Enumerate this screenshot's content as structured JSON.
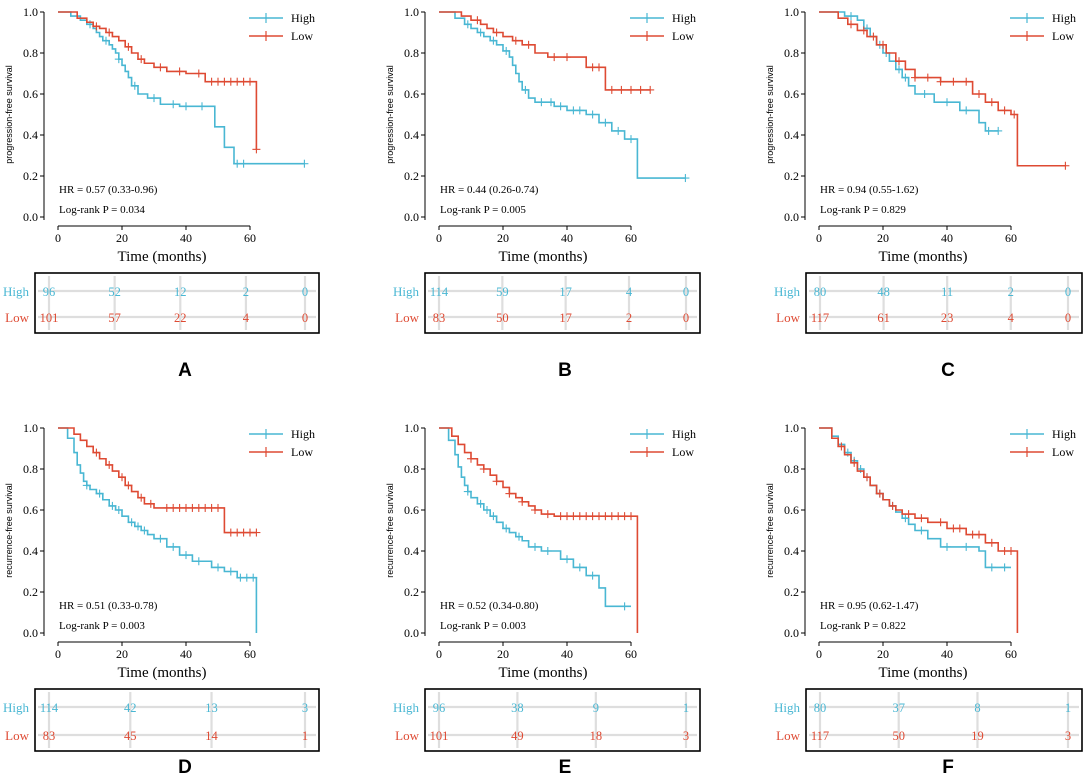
{
  "colors": {
    "high": "#49B7D3",
    "low": "#DE4A33"
  },
  "chart_data": [
    {
      "type": "line",
      "panel": "A",
      "ylabel": "progression-free  survival",
      "xlabel": "Time (months)",
      "xlim": [
        0,
        78
      ],
      "ylim": [
        0,
        1
      ],
      "xticks": [
        "0",
        "20",
        "40",
        "60"
      ],
      "yticks": [
        "0.0",
        "0.2",
        "0.4",
        "0.6",
        "0.8",
        "1.0"
      ],
      "legend": [
        "High",
        "Low"
      ],
      "legend_position": "top-right",
      "hr": "HR = 0.57 (0.33-0.96)",
      "pvalue": "Log-rank P = 0.034",
      "series": [
        {
          "name": "High",
          "x": [
            0,
            4,
            7,
            9,
            11,
            12,
            13,
            14,
            16,
            17,
            18,
            19,
            20,
            21,
            22,
            23,
            25,
            28,
            32,
            38,
            49,
            52,
            55,
            77
          ],
          "y": [
            1.0,
            0.98,
            0.96,
            0.94,
            0.92,
            0.9,
            0.88,
            0.86,
            0.84,
            0.82,
            0.8,
            0.77,
            0.74,
            0.71,
            0.68,
            0.64,
            0.6,
            0.58,
            0.55,
            0.54,
            0.44,
            0.34,
            0.26,
            0.26
          ],
          "censored_x": [
            10,
            15,
            19,
            24,
            30,
            36,
            40,
            45,
            56,
            58,
            77
          ]
        },
        {
          "name": "Low",
          "x": [
            0,
            6,
            9,
            11,
            13,
            15,
            17,
            19,
            21,
            23,
            25,
            27,
            30,
            34,
            40,
            46,
            62,
            62
          ],
          "y": [
            1.0,
            0.97,
            0.95,
            0.93,
            0.92,
            0.9,
            0.88,
            0.86,
            0.83,
            0.8,
            0.77,
            0.75,
            0.73,
            0.71,
            0.7,
            0.66,
            0.66,
            0.33
          ],
          "censored_x": [
            12,
            16,
            22,
            26,
            32,
            38,
            44,
            48,
            50,
            52,
            54,
            56,
            58,
            60,
            62
          ]
        }
      ],
      "risk_table": {
        "times": [
          0,
          20,
          40,
          60,
          78
        ],
        "High": [
          "96",
          "52",
          "12",
          "2",
          "0"
        ],
        "Low": [
          "101",
          "57",
          "22",
          "4",
          "0"
        ]
      }
    },
    {
      "type": "line",
      "panel": "B",
      "ylabel": "progression-free  survival",
      "xlabel": "Time (months)",
      "xlim": [
        0,
        78
      ],
      "ylim": [
        0,
        1
      ],
      "xticks": [
        "0",
        "20",
        "40",
        "60"
      ],
      "yticks": [
        "0.0",
        "0.2",
        "0.4",
        "0.6",
        "0.8",
        "1.0"
      ],
      "legend": [
        "High",
        "Low"
      ],
      "legend_position": "top-right",
      "hr": "HR = 0.44 (0.26-0.74)",
      "pvalue": "Log-rank P = 0.005",
      "series": [
        {
          "name": "High",
          "x": [
            0,
            5,
            8,
            10,
            12,
            14,
            16,
            18,
            20,
            22,
            23,
            24,
            25,
            26,
            28,
            30,
            36,
            40,
            46,
            50,
            54,
            58,
            62,
            77
          ],
          "y": [
            1.0,
            0.97,
            0.94,
            0.92,
            0.9,
            0.88,
            0.86,
            0.84,
            0.81,
            0.78,
            0.74,
            0.7,
            0.66,
            0.62,
            0.58,
            0.56,
            0.54,
            0.52,
            0.5,
            0.46,
            0.42,
            0.38,
            0.19,
            0.19
          ],
          "censored_x": [
            9,
            13,
            17,
            21,
            27,
            32,
            35,
            38,
            42,
            44,
            48,
            52,
            56,
            60,
            77
          ]
        },
        {
          "name": "Low",
          "x": [
            0,
            7,
            10,
            13,
            15,
            17,
            20,
            23,
            26,
            30,
            34,
            42,
            46,
            52,
            56,
            66
          ],
          "y": [
            1.0,
            0.98,
            0.96,
            0.94,
            0.92,
            0.9,
            0.88,
            0.86,
            0.84,
            0.8,
            0.78,
            0.78,
            0.73,
            0.62,
            0.62,
            0.62
          ],
          "censored_x": [
            12,
            18,
            24,
            28,
            36,
            40,
            48,
            50,
            54,
            57,
            60,
            63,
            66
          ]
        }
      ],
      "risk_table": {
        "times": [
          0,
          20,
          40,
          60,
          78
        ],
        "High": [
          "114",
          "59",
          "17",
          "4",
          "0"
        ],
        "Low": [
          "83",
          "50",
          "17",
          "2",
          "0"
        ]
      }
    },
    {
      "type": "line",
      "panel": "C",
      "ylabel": "progression-free  survival",
      "xlabel": "Time (months)",
      "xlim": [
        0,
        78
      ],
      "ylim": [
        0,
        1
      ],
      "xticks": [
        "0",
        "20",
        "40",
        "60"
      ],
      "yticks": [
        "0.0",
        "0.2",
        "0.4",
        "0.6",
        "0.8",
        "1.0"
      ],
      "legend": [
        "High",
        "Low"
      ],
      "legend_position": "top-right",
      "hr": "HR = 0.94 (0.55-1.62)",
      "pvalue": "Log-rank P = 0.829",
      "series": [
        {
          "name": "High",
          "x": [
            0,
            8,
            12,
            14,
            16,
            18,
            20,
            22,
            24,
            26,
            28,
            30,
            36,
            44,
            50,
            52,
            56
          ],
          "y": [
            1.0,
            0.98,
            0.96,
            0.92,
            0.88,
            0.84,
            0.8,
            0.76,
            0.72,
            0.68,
            0.64,
            0.6,
            0.56,
            0.52,
            0.46,
            0.42,
            0.42
          ],
          "censored_x": [
            10,
            15,
            19,
            21,
            25,
            27,
            33,
            40,
            46,
            53,
            56
          ]
        },
        {
          "name": "Low",
          "x": [
            0,
            6,
            9,
            12,
            15,
            18,
            21,
            24,
            27,
            30,
            38,
            48,
            52,
            56,
            60,
            62,
            77
          ],
          "y": [
            1.0,
            0.97,
            0.94,
            0.91,
            0.88,
            0.84,
            0.8,
            0.76,
            0.72,
            0.68,
            0.66,
            0.6,
            0.56,
            0.52,
            0.5,
            0.25,
            0.25
          ],
          "censored_x": [
            10,
            14,
            17,
            20,
            25,
            30,
            34,
            38,
            42,
            46,
            50,
            54,
            58,
            61,
            77
          ]
        }
      ],
      "risk_table": {
        "times": [
          0,
          20,
          40,
          60,
          78
        ],
        "High": [
          "80",
          "48",
          "11",
          "2",
          "0"
        ],
        "Low": [
          "117",
          "61",
          "23",
          "4",
          "0"
        ]
      }
    },
    {
      "type": "line",
      "panel": "D",
      "ylabel": "recurrence-free  survival",
      "xlabel": "Time (months)",
      "xlim": [
        0,
        63
      ],
      "ylim": [
        0,
        1
      ],
      "xticks": [
        "0",
        "20",
        "40",
        "60"
      ],
      "yticks": [
        "0.0",
        "0.2",
        "0.4",
        "0.6",
        "0.8",
        "1.0"
      ],
      "legend": [
        "High",
        "Low"
      ],
      "legend_position": "top-right",
      "hr": "HR = 0.51 (0.33-0.78)",
      "pvalue": "Log-rank P = 0.003",
      "series": [
        {
          "name": "High",
          "x": [
            0,
            3,
            5,
            6,
            7,
            8,
            9,
            10,
            12,
            14,
            16,
            18,
            20,
            22,
            24,
            26,
            28,
            30,
            34,
            38,
            42,
            48,
            52,
            56,
            62,
            62
          ],
          "y": [
            1.0,
            0.95,
            0.88,
            0.82,
            0.78,
            0.74,
            0.72,
            0.7,
            0.68,
            0.65,
            0.62,
            0.6,
            0.57,
            0.54,
            0.52,
            0.5,
            0.48,
            0.46,
            0.42,
            0.38,
            0.35,
            0.32,
            0.3,
            0.27,
            0.27,
            0.0
          ],
          "censored_x": [
            9,
            13,
            17,
            19,
            23,
            25,
            27,
            32,
            36,
            40,
            44,
            50,
            54,
            57,
            59,
            61
          ]
        },
        {
          "name": "Low",
          "x": [
            0,
            5,
            7,
            9,
            11,
            13,
            15,
            17,
            19,
            21,
            23,
            25,
            27,
            30,
            40,
            52,
            52,
            62
          ],
          "y": [
            1.0,
            0.97,
            0.94,
            0.91,
            0.88,
            0.85,
            0.82,
            0.79,
            0.76,
            0.72,
            0.69,
            0.66,
            0.63,
            0.61,
            0.61,
            0.61,
            0.49,
            0.49
          ],
          "censored_x": [
            12,
            16,
            20,
            22,
            26,
            29,
            34,
            36,
            38,
            40,
            42,
            44,
            46,
            48,
            50,
            54,
            56,
            58,
            60,
            62
          ]
        }
      ],
      "risk_table": {
        "times": [
          0,
          20,
          40,
          63
        ],
        "High": [
          "114",
          "42",
          "13",
          "3"
        ],
        "Low": [
          "83",
          "45",
          "14",
          "1"
        ]
      }
    },
    {
      "type": "line",
      "panel": "E",
      "ylabel": "recurrence-free  survival",
      "xlabel": "Time (months)",
      "xlim": [
        0,
        63
      ],
      "ylim": [
        0,
        1
      ],
      "xticks": [
        "0",
        "20",
        "40",
        "60"
      ],
      "yticks": [
        "0.0",
        "0.2",
        "0.4",
        "0.6",
        "0.8",
        "1.0"
      ],
      "legend": [
        "High",
        "Low"
      ],
      "legend_position": "top-right",
      "hr": "HR = 0.52 (0.34-0.80)",
      "pvalue": "Log-rank P = 0.003",
      "series": [
        {
          "name": "High",
          "x": [
            0,
            3,
            5,
            6,
            7,
            8,
            9,
            10,
            12,
            14,
            16,
            18,
            20,
            22,
            24,
            26,
            28,
            32,
            38,
            42,
            46,
            50,
            52,
            56,
            60
          ],
          "y": [
            1.0,
            0.94,
            0.87,
            0.81,
            0.76,
            0.72,
            0.69,
            0.66,
            0.63,
            0.6,
            0.57,
            0.54,
            0.51,
            0.49,
            0.47,
            0.45,
            0.42,
            0.4,
            0.36,
            0.32,
            0.28,
            0.22,
            0.13,
            0.13,
            0.13
          ],
          "censored_x": [
            9,
            13,
            15,
            17,
            21,
            25,
            30,
            34,
            40,
            44,
            48,
            58
          ]
        },
        {
          "name": "Low",
          "x": [
            0,
            4,
            6,
            8,
            10,
            12,
            14,
            16,
            18,
            20,
            22,
            24,
            26,
            28,
            30,
            32,
            36,
            62,
            62
          ],
          "y": [
            1.0,
            0.96,
            0.92,
            0.88,
            0.85,
            0.82,
            0.8,
            0.77,
            0.74,
            0.71,
            0.68,
            0.66,
            0.64,
            0.62,
            0.6,
            0.58,
            0.57,
            0.57,
            0.0
          ],
          "censored_x": [
            10,
            14,
            18,
            22,
            26,
            30,
            34,
            38,
            40,
            42,
            44,
            46,
            48,
            50,
            52,
            54,
            56,
            58,
            60
          ]
        }
      ],
      "risk_table": {
        "times": [
          0,
          20,
          40,
          63
        ],
        "High": [
          "96",
          "38",
          "9",
          "1"
        ],
        "Low": [
          "101",
          "49",
          "18",
          "3"
        ]
      }
    },
    {
      "type": "line",
      "panel": "F",
      "ylabel": "recurrence-free  survival",
      "xlabel": "Time (months)",
      "xlim": [
        0,
        63
      ],
      "ylim": [
        0,
        1
      ],
      "xticks": [
        "0",
        "20",
        "40",
        "60"
      ],
      "yticks": [
        "0.0",
        "0.2",
        "0.4",
        "0.6",
        "0.8",
        "1.0"
      ],
      "legend": [
        "High",
        "Low"
      ],
      "legend_position": "top-right",
      "hr": "HR = 0.95 (0.62-1.47)",
      "pvalue": "Log-rank P = 0.822",
      "series": [
        {
          "name": "High",
          "x": [
            0,
            4,
            6,
            8,
            10,
            12,
            14,
            16,
            18,
            20,
            22,
            24,
            26,
            28,
            30,
            34,
            38,
            44,
            50,
            52,
            56,
            60
          ],
          "y": [
            1.0,
            0.96,
            0.92,
            0.88,
            0.84,
            0.8,
            0.76,
            0.72,
            0.68,
            0.65,
            0.62,
            0.59,
            0.56,
            0.53,
            0.5,
            0.46,
            0.42,
            0.42,
            0.4,
            0.32,
            0.32,
            0.32
          ],
          "censored_x": [
            9,
            11,
            13,
            15,
            19,
            23,
            27,
            32,
            40,
            46,
            54,
            58
          ]
        },
        {
          "name": "Low",
          "x": [
            0,
            4,
            6,
            8,
            10,
            12,
            14,
            16,
            18,
            20,
            22,
            24,
            26,
            30,
            34,
            40,
            46,
            52,
            56,
            62,
            62
          ],
          "y": [
            1.0,
            0.95,
            0.91,
            0.87,
            0.83,
            0.79,
            0.76,
            0.72,
            0.68,
            0.65,
            0.62,
            0.6,
            0.58,
            0.56,
            0.54,
            0.51,
            0.48,
            0.44,
            0.4,
            0.39,
            0.0
          ],
          "censored_x": [
            7,
            11,
            15,
            19,
            23,
            28,
            32,
            38,
            42,
            44,
            48,
            50,
            54,
            58,
            60
          ]
        }
      ],
      "risk_table": {
        "times": [
          0,
          20,
          40,
          63
        ],
        "High": [
          "80",
          "37",
          "8",
          "1"
        ],
        "Low": [
          "117",
          "50",
          "19",
          "3"
        ]
      }
    }
  ]
}
